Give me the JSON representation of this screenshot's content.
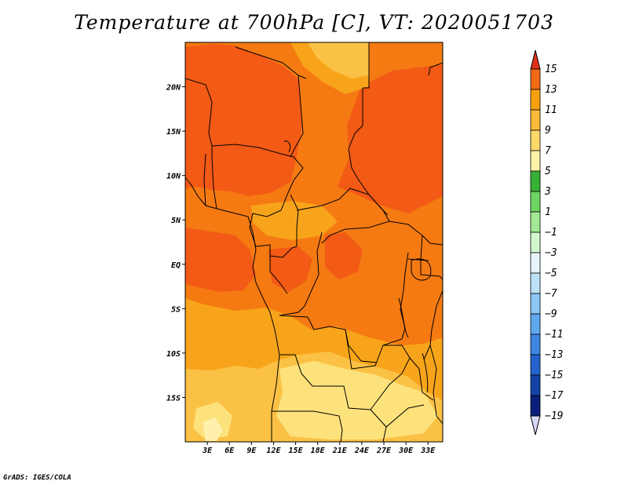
{
  "title": "Temperature at 700hPa [C], VT: 2020051703",
  "credit": "GrADS: IGES/COLA",
  "map": {
    "lat_range": [
      -20,
      25
    ],
    "lon_range": [
      0,
      35
    ],
    "lat_ticks": [
      {
        "lat": 20,
        "label": "20N"
      },
      {
        "lat": 15,
        "label": "15N"
      },
      {
        "lat": 10,
        "label": "10N"
      },
      {
        "lat": 5,
        "label": "5N"
      },
      {
        "lat": 0,
        "label": "EQ"
      },
      {
        "lat": -5,
        "label": "5S"
      },
      {
        "lat": -10,
        "label": "10S"
      },
      {
        "lat": -15,
        "label": "15S"
      }
    ],
    "lon_ticks": [
      {
        "lon": 3,
        "label": "3E"
      },
      {
        "lon": 6,
        "label": "6E"
      },
      {
        "lon": 9,
        "label": "9E"
      },
      {
        "lon": 12,
        "label": "12E"
      },
      {
        "lon": 15,
        "label": "15E"
      },
      {
        "lon": 18,
        "label": "18E"
      },
      {
        "lon": 21,
        "label": "21E"
      },
      {
        "lon": 24,
        "label": "24E"
      },
      {
        "lon": 27,
        "label": "27E"
      },
      {
        "lon": 30,
        "label": "30E"
      },
      {
        "lon": 33,
        "label": "33E"
      }
    ]
  },
  "legend": {
    "levels": [
      "15",
      "13",
      "11",
      "9",
      "7",
      "5",
      "3",
      "1",
      "−1",
      "−3",
      "−5",
      "−7",
      "−9",
      "−11",
      "−13",
      "−15",
      "−17",
      "−19"
    ],
    "colors": [
      "#f03c1e",
      "#f46a14",
      "#f7a00e",
      "#fbba3a",
      "#fdd96a",
      "#fff3a8",
      "#36b035",
      "#6fd562",
      "#a4ea95",
      "#d2f7cc",
      "#e6f5fb",
      "#bde2f8",
      "#8cc6f4",
      "#5ea8ee",
      "#3c86e2",
      "#2563cd",
      "#1442a8",
      "#0a1f7a",
      "#0a0a5a"
    ],
    "top_arrow_color": "#e03118",
    "bottom_arrow_color": "#d8d8f8"
  },
  "field_colors": {
    "t13": "#f25a16",
    "t11": "#f57a12",
    "t9": "#f8a41a",
    "t7": "#fbc145",
    "t5": "#fde27c",
    "t3": "#fff0ac"
  }
}
